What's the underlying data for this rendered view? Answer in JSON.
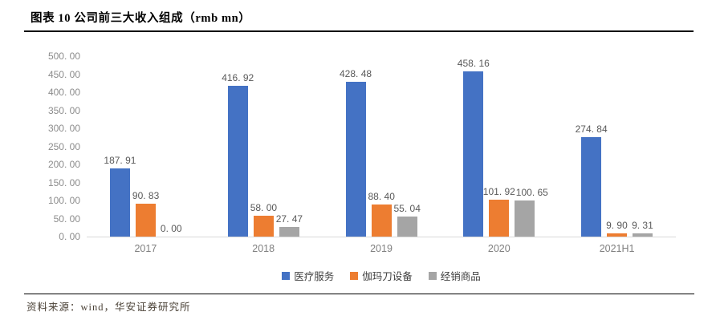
{
  "figure": {
    "title": "图表 10 公司前三大收入组成（rmb mn）",
    "source": "资料来源：wind，华安证券研究所"
  },
  "colors": {
    "background": "#FFFFFF",
    "rule": "#000000",
    "title_text": "#000000",
    "source_text": "#4A4136",
    "axis_line": "#D9D9D9",
    "y_tick_label": "#8C8C8C",
    "x_axis_label": "#7F7F7F",
    "data_label": "#595959"
  },
  "chart_data": {
    "type": "bar",
    "title": "公司前三大收入组成（rmb mn）",
    "xlabel": "",
    "ylabel": "",
    "grid": false,
    "legend_position": "bottom",
    "categories": [
      "2017",
      "2018",
      "2019",
      "2020",
      "2021H1"
    ],
    "series": [
      {
        "name": "医疗服务",
        "color": "#4472C4",
        "values": [
          187.91,
          416.92,
          428.48,
          458.16,
          274.84
        ],
        "labels": [
          "187. 91",
          "416. 92",
          "428. 48",
          "458. 16",
          "274. 84"
        ]
      },
      {
        "name": "伽玛刀设备",
        "color": "#ED7D31",
        "values": [
          90.83,
          58.0,
          88.4,
          101.92,
          9.9
        ],
        "labels": [
          "90. 83",
          "58. 00",
          "88. 40",
          "101. 92",
          "9. 90"
        ]
      },
      {
        "name": "经销商品",
        "color": "#A5A5A5",
        "values": [
          0.0,
          27.47,
          55.04,
          100.65,
          9.31
        ],
        "labels": [
          "0. 00",
          "27. 47",
          "55. 04",
          "100. 65",
          "9. 31"
        ]
      }
    ],
    "ylim": [
      0,
      500
    ],
    "ytick_step": 50,
    "ytick_labels": [
      "0. 00",
      "50. 00",
      "100. 00",
      "150. 00",
      "200. 00",
      "250. 00",
      "300. 00",
      "350. 00",
      "400. 00",
      "450. 00",
      "500. 00"
    ]
  }
}
